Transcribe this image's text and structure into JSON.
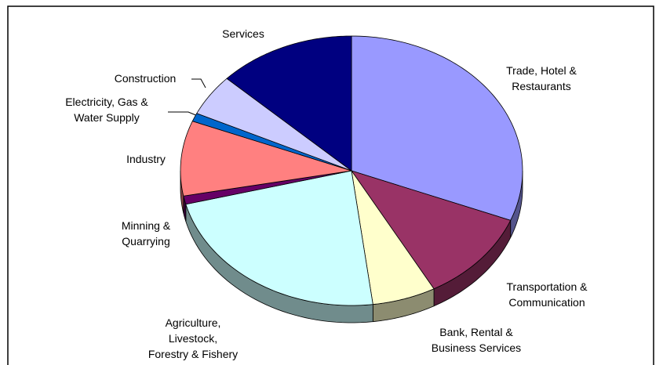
{
  "chart_data": {
    "type": "pie",
    "categories": [
      "Trade, Hotel &\nRestaurants",
      "Transportation &\nCommunication",
      "Bank, Rental &\nBusiness Services",
      "Agriculture,\nLivestock,\nForestry & Fishery",
      "Minning &\nQuarrying",
      "Industry",
      "Electricity, Gas &\nWater Supply",
      "Construction",
      "Services"
    ],
    "values": [
      31,
      11,
      6,
      23,
      1,
      9,
      1,
      5,
      13
    ],
    "colors": [
      "#9999ff",
      "#993366",
      "#ffffcc",
      "#ccffff",
      "#660066",
      "#ff8080",
      "#0066cc",
      "#ccccff",
      "#000080"
    ]
  }
}
